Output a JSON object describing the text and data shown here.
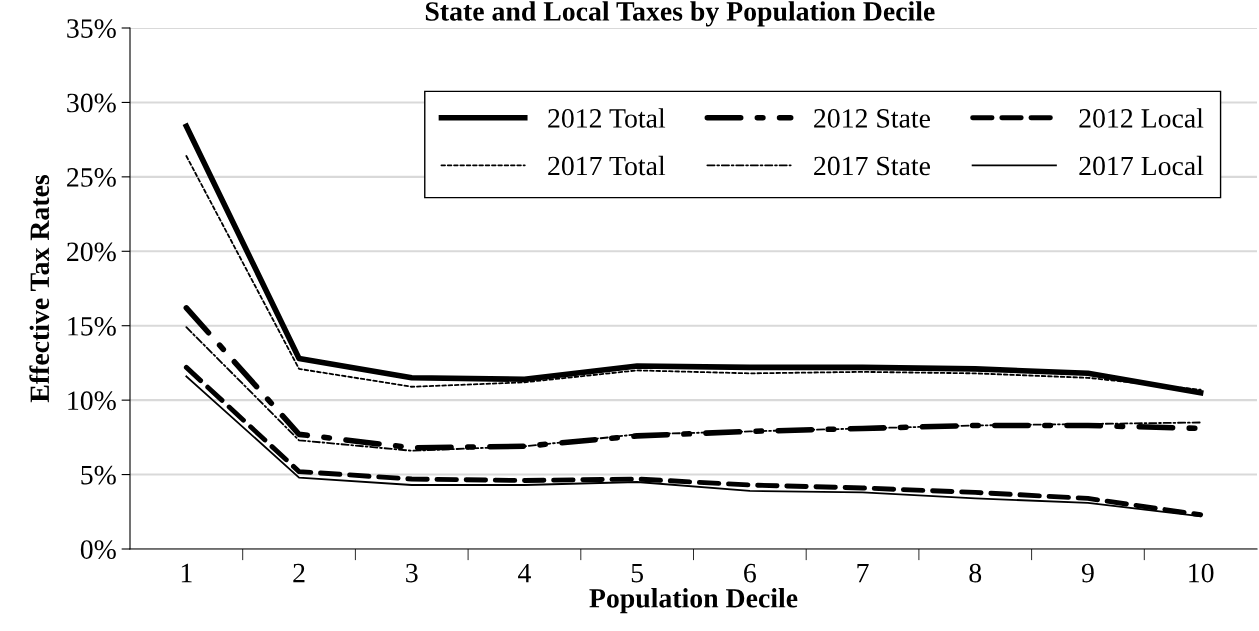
{
  "chart_data": {
    "type": "line",
    "title": "State and Local Taxes by Population Decile",
    "xlabel": "Population Decile",
    "ylabel": "Effective Tax Rates",
    "categories": [
      "1",
      "2",
      "3",
      "4",
      "5",
      "6",
      "7",
      "8",
      "9",
      "10"
    ],
    "series": [
      {
        "name": "2012 Total",
        "color": "#000000",
        "line_style": "solid",
        "values": [
          28.4,
          12.8,
          11.5,
          11.4,
          12.3,
          12.2,
          12.2,
          12.1,
          11.8,
          10.5
        ]
      },
      {
        "name": "2012 State",
        "color": "#000000",
        "line_style": "dashdot",
        "values": [
          16.2,
          7.7,
          6.8,
          6.9,
          7.6,
          7.9,
          8.1,
          8.3,
          8.3,
          8.1
        ]
      },
      {
        "name": "2012 Local",
        "color": "#000000",
        "line_style": "dashed",
        "values": [
          12.2,
          5.2,
          4.7,
          4.6,
          4.7,
          4.3,
          4.1,
          3.8,
          3.4,
          2.3
        ]
      },
      {
        "name": "2017 Total",
        "color": "#000000",
        "line_style": "dotted",
        "values": [
          26.4,
          12.1,
          10.9,
          11.2,
          12.0,
          11.8,
          11.9,
          11.8,
          11.5,
          10.7
        ]
      },
      {
        "name": "2017 State",
        "color": "#000000",
        "line_style": "dashdot",
        "values": [
          14.9,
          7.3,
          6.6,
          6.9,
          7.7,
          7.9,
          8.1,
          8.3,
          8.4,
          8.5
        ]
      },
      {
        "name": "2017 Local",
        "color": "#000000",
        "line_style": "solid",
        "values": [
          11.6,
          4.8,
          4.3,
          4.3,
          4.5,
          3.9,
          3.8,
          3.4,
          3.1,
          2.2
        ]
      }
    ],
    "ylim": [
      0,
      35
    ],
    "yticks": [
      {
        "value": 0,
        "label": "0%"
      },
      {
        "value": 5,
        "label": "5%"
      },
      {
        "value": 10,
        "label": "10%"
      },
      {
        "value": 15,
        "label": "15%"
      },
      {
        "value": 20,
        "label": "20%"
      },
      {
        "value": 25,
        "label": "25%"
      },
      {
        "value": 30,
        "label": "30%"
      },
      {
        "value": 35,
        "label": "35%"
      }
    ],
    "grid": "y",
    "legend": "top right",
    "marker": "none"
  }
}
